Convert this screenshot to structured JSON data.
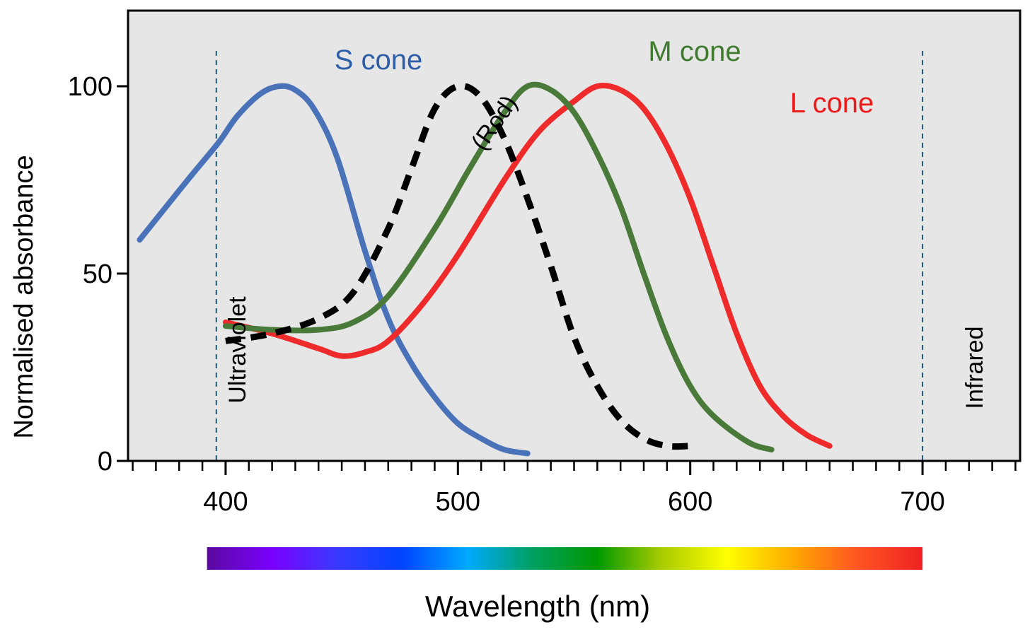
{
  "chart_data": {
    "type": "line",
    "title": "",
    "xlabel": "Wavelength (nm)",
    "ylabel": "Normalised absorbance",
    "xlim": [
      358,
      742
    ],
    "ylim": [
      0,
      100
    ],
    "x_ticks": [
      400,
      500,
      600,
      700
    ],
    "y_ticks": [
      0,
      50,
      100
    ],
    "x_tick_labels": [
      "400",
      "500",
      "600",
      "700"
    ],
    "y_tick_labels": [
      "0",
      "50",
      "100"
    ],
    "grid": false,
    "background": "#e6e6e6",
    "series": [
      {
        "name": "S cone",
        "color": "#4a72b8",
        "dashed": false,
        "x": [
          363,
          372,
          385,
          397,
          405,
          415,
          423,
          430,
          438,
          448,
          460,
          470,
          480,
          490,
          500,
          510,
          520,
          530
        ],
        "y": [
          59,
          66,
          76,
          85,
          92,
          98,
          100,
          99,
          94,
          81,
          56,
          38,
          26,
          17,
          10,
          6,
          3,
          2
        ]
      },
      {
        "name": "M cone",
        "color": "#4a7a3a",
        "dashed": false,
        "x": [
          400,
          420,
          440,
          455,
          470,
          490,
          505,
          520,
          530,
          540,
          550,
          560,
          570,
          580,
          590,
          600,
          610,
          625,
          635
        ],
        "y": [
          36,
          35,
          35,
          37,
          44,
          62,
          78,
          93,
          100,
          99,
          93,
          82,
          68,
          50,
          33,
          20,
          12,
          5,
          3
        ]
      },
      {
        "name": "L cone",
        "color": "#ee2a2a",
        "dashed": false,
        "x": [
          400,
          420,
          440,
          450,
          460,
          470,
          485,
          500,
          520,
          535,
          550,
          560,
          570,
          580,
          590,
          600,
          610,
          620,
          630,
          640,
          650,
          660
        ],
        "y": [
          37,
          34,
          30,
          28,
          29,
          32,
          42,
          55,
          75,
          88,
          96,
          100,
          99,
          94,
          84,
          70,
          52,
          34,
          20,
          12,
          7,
          4
        ]
      },
      {
        "name": "(Rod)",
        "color": "#000000",
        "dashed": true,
        "x": [
          400,
          420,
          440,
          455,
          470,
          480,
          490,
          500,
          510,
          520,
          530,
          540,
          550,
          560,
          570,
          580,
          590,
          600
        ],
        "y": [
          32,
          34,
          38,
          45,
          62,
          78,
          94,
          100,
          97,
          86,
          70,
          52,
          33,
          20,
          11,
          6,
          4,
          4
        ]
      }
    ],
    "annotations": [
      {
        "text": "Ultraviolet",
        "color": "#000000"
      },
      {
        "text": "Infrared",
        "color": "#000000"
      }
    ],
    "reference_lines": [
      {
        "label": "Ultraviolet",
        "x": 396,
        "color": "#1f5a7a"
      },
      {
        "label": "Infrared",
        "x": 700,
        "color": "#1f5a7a"
      }
    ],
    "spectrum_bar": {
      "x_range": [
        392,
        700
      ],
      "stops": [
        "#5a0aa0",
        "#7a00ff",
        "#3a3aff",
        "#0044ff",
        "#00aaff",
        "#00a060",
        "#009900",
        "#aacc00",
        "#ffff00",
        "#ffaa00",
        "#ff5522",
        "#ee2222"
      ]
    }
  }
}
